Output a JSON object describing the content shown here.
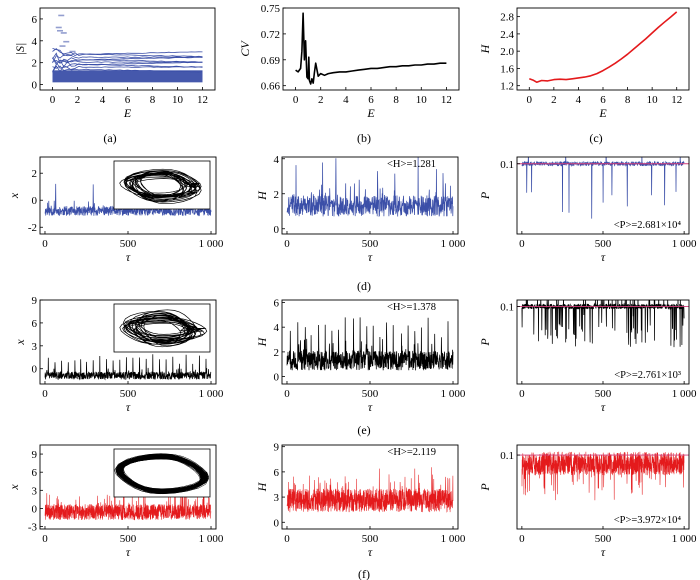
{
  "colors": {
    "blue": "#3b4fa8",
    "black": "#000000",
    "red": "#e41a1c",
    "pink": "#d23c78"
  },
  "row_labels": [
    "(a)",
    "(b)",
    "(c)",
    "(d)",
    "(e)",
    "(f)"
  ],
  "chart_data": [
    {
      "id": "a",
      "type": "line",
      "color": "blue",
      "xlabel": "E",
      "ylabel": "|S|",
      "xlim": [
        -1,
        13
      ],
      "ylim": [
        -0.5,
        7
      ],
      "xticks": [
        0,
        2,
        4,
        6,
        8,
        10,
        12
      ],
      "xtick_labels": [
        "0",
        "2",
        "4",
        "6",
        "8",
        "10",
        "12"
      ],
      "yticks": [
        0,
        2,
        4,
        6
      ],
      "ytick_labels": [
        "0",
        "2",
        "4",
        "6"
      ],
      "series_note": "many nearly flat lines",
      "x": [
        0,
        12
      ],
      "band": [
        0.2,
        1.3
      ],
      "lines": [
        1.45,
        1.6,
        1.75,
        1.9,
        2.05,
        2.2,
        2.35,
        2.5,
        2.7,
        2.85
      ],
      "scatter_points": [
        [
          0.6,
          4.9
        ],
        [
          0.9,
          4.7
        ],
        [
          0.7,
          6.3
        ],
        [
          0.5,
          5.2
        ],
        [
          0.8,
          3.5
        ],
        [
          1.1,
          3.9
        ],
        [
          1.6,
          3.0
        ]
      ]
    },
    {
      "id": "b",
      "type": "line",
      "color": "black",
      "xlabel": "E",
      "ylabel": "CV",
      "xlim": [
        -1,
        13
      ],
      "ylim": [
        0.655,
        0.75
      ],
      "xticks": [
        0,
        2,
        4,
        6,
        8,
        10,
        12
      ],
      "xtick_labels": [
        "0",
        "2",
        "4",
        "6",
        "8",
        "10",
        "12"
      ],
      "yticks": [
        0.66,
        0.69,
        0.72,
        0.75
      ],
      "ytick_labels": [
        "0.66",
        "0.69",
        "0.72",
        "0.75"
      ],
      "x": [
        0,
        0.2,
        0.4,
        0.5,
        0.6,
        0.7,
        0.75,
        0.8,
        0.9,
        1.0,
        1.05,
        1.1,
        1.2,
        1.3,
        1.4,
        1.5,
        1.6,
        1.8,
        2.0,
        2.3,
        2.6,
        3.0,
        3.5,
        4.0,
        4.5,
        5.0,
        5.5,
        6.0,
        6.5,
        7.0,
        7.5,
        8.0,
        8.5,
        9.0,
        9.5,
        10.0,
        10.5,
        11.0,
        11.5,
        12.0
      ],
      "y": [
        0.678,
        0.676,
        0.68,
        0.7,
        0.744,
        0.69,
        0.705,
        0.712,
        0.67,
        0.668,
        0.693,
        0.666,
        0.662,
        0.668,
        0.663,
        0.675,
        0.686,
        0.671,
        0.674,
        0.672,
        0.674,
        0.675,
        0.676,
        0.676,
        0.677,
        0.678,
        0.679,
        0.68,
        0.68,
        0.681,
        0.682,
        0.682,
        0.683,
        0.683,
        0.684,
        0.684,
        0.685,
        0.685,
        0.686,
        0.686
      ]
    },
    {
      "id": "c",
      "type": "line",
      "color": "red",
      "xlabel": "E",
      "ylabel": "H",
      "xlim": [
        -1,
        13
      ],
      "ylim": [
        1.1,
        3.0
      ],
      "xticks": [
        0,
        2,
        4,
        6,
        8,
        10,
        12
      ],
      "xtick_labels": [
        "0",
        "2",
        "4",
        "6",
        "8",
        "10",
        "12"
      ],
      "yticks": [
        1.2,
        1.6,
        2.0,
        2.4,
        2.8
      ],
      "ytick_labels": [
        "1.2",
        "1.6",
        "2.0",
        "2.4",
        "2.8"
      ],
      "x": [
        0,
        0.3,
        0.6,
        1.0,
        1.5,
        2.0,
        2.5,
        3.0,
        3.5,
        4.0,
        4.5,
        5.0,
        5.5,
        6.0,
        6.5,
        7.0,
        7.5,
        8.0,
        8.5,
        9.0,
        9.5,
        10.0,
        10.5,
        11.0,
        11.5,
        12.0
      ],
      "y": [
        1.36,
        1.33,
        1.28,
        1.32,
        1.31,
        1.34,
        1.35,
        1.34,
        1.36,
        1.38,
        1.4,
        1.43,
        1.48,
        1.55,
        1.63,
        1.72,
        1.82,
        1.93,
        2.05,
        2.17,
        2.29,
        2.42,
        2.55,
        2.67,
        2.79,
        2.91
      ]
    },
    {
      "id": "d1",
      "type": "line",
      "color": "blue",
      "xlabel": "τ",
      "ylabel": "x",
      "xlim": [
        -30,
        1030
      ],
      "ylim": [
        -2.5,
        3.2
      ],
      "xticks": [
        0,
        500,
        1000
      ],
      "xtick_labels": [
        "0",
        "500",
        "1 000"
      ],
      "yticks": [
        -2,
        0,
        2
      ],
      "ytick_labels": [
        "-2",
        "0",
        "2"
      ],
      "signal": {
        "n": 700,
        "base": -0.8,
        "noise": 0.35,
        "spikes": [
          65,
          290,
          420,
          480,
          555,
          640,
          820,
          890,
          950
        ],
        "spike_h": 2.0,
        "seed": 11
      },
      "inset": "attractor"
    },
    {
      "id": "d2",
      "type": "line",
      "color": "blue",
      "xlabel": "τ",
      "ylabel": "H",
      "xlim": [
        -30,
        1030
      ],
      "ylim": [
        -0.3,
        4.1
      ],
      "xticks": [
        0,
        500,
        1000
      ],
      "xtick_labels": [
        "0",
        "500",
        "1 000"
      ],
      "yticks": [
        0,
        2,
        4
      ],
      "ytick_labels": [
        "0",
        "2",
        "4"
      ],
      "annotation": "<H>=1.281",
      "signal": {
        "n": 700,
        "base": 1.3,
        "noise": 0.6,
        "spikes": [
          55,
          215,
          295,
          435,
          545,
          650,
          790,
          900,
          940
        ],
        "spike_h": 2.3,
        "seed": 21
      }
    },
    {
      "id": "d3",
      "type": "line",
      "color": "blue",
      "xlabel": "τ",
      "ylabel": "P",
      "xlim": [
        -30,
        1030
      ],
      "yscale": "log",
      "ylim_log": [
        -3.6,
        -0.75
      ],
      "xticks": [
        0,
        500,
        1000
      ],
      "xtick_labels": [
        "0",
        "500",
        "1 000"
      ],
      "yticks": [
        0.1
      ],
      "ytick_labels": [
        "0.1"
      ],
      "annotation": "<P>=2.681×10⁴",
      "reference_line": 0.1,
      "signal": {
        "n": 700,
        "base_log": -1.0,
        "noise": 0.08,
        "drops": [
          30,
          60,
          250,
          290,
          430,
          500,
          555,
          650,
          800,
          880,
          950
        ],
        "drop_depth": 1.9,
        "up_spikes": [
          40,
          270,
          520,
          740,
          975
        ],
        "seed": 31
      }
    },
    {
      "id": "e1",
      "type": "line",
      "color": "black",
      "xlabel": "τ",
      "ylabel": "x",
      "xlim": [
        -30,
        1030
      ],
      "ylim": [
        -2,
        9
      ],
      "xticks": [
        0,
        500,
        1000
      ],
      "xtick_labels": [
        "0",
        "500",
        "1 000"
      ],
      "yticks": [
        0,
        3,
        6,
        9
      ],
      "ytick_labels": [
        "0",
        "3",
        "6",
        "9"
      ],
      "signal": {
        "n": 800,
        "base": -0.9,
        "noise": 0.5,
        "spikes": [
          20,
          60,
          100,
          140,
          180,
          215,
          250,
          290,
          330,
          370,
          410,
          450,
          490,
          530,
          570,
          610,
          650,
          690,
          730,
          770,
          810,
          850,
          890,
          930,
          970
        ],
        "spike_h": 2.2,
        "seed": 41
      },
      "inset": "attractor"
    },
    {
      "id": "e2",
      "type": "line",
      "color": "black",
      "xlabel": "τ",
      "ylabel": "H",
      "xlim": [
        -30,
        1030
      ],
      "ylim": [
        -0.6,
        6.2
      ],
      "xticks": [
        0,
        500,
        1000
      ],
      "xtick_labels": [
        "0",
        "500",
        "1 000"
      ],
      "yticks": [
        0,
        2,
        4,
        6
      ],
      "ytick_labels": [
        "0",
        "2",
        "4",
        "6"
      ],
      "annotation": "<H>=1.378",
      "signal": {
        "n": 800,
        "base": 1.3,
        "noise": 0.8,
        "spikes": [
          20,
          65,
          110,
          145,
          190,
          230,
          270,
          310,
          350,
          400,
          440,
          480,
          520,
          560,
          600,
          640,
          690,
          730,
          770,
          810,
          850,
          890,
          930,
          970
        ],
        "spike_h": 2.6,
        "seed": 51
      }
    },
    {
      "id": "e3",
      "type": "line",
      "color": "black",
      "xlabel": "τ",
      "ylabel": "P",
      "xlim": [
        -30,
        1030
      ],
      "yscale": "log",
      "ylim_log": [
        -4.0,
        -0.75
      ],
      "xticks": [
        0,
        500,
        1000
      ],
      "xtick_labels": [
        "0",
        "500",
        "1 000"
      ],
      "yticks": [
        0.1
      ],
      "ytick_labels": [
        "0.1"
      ],
      "annotation": "<P>=2.761×10³",
      "reference_line": 0.1,
      "signal": {
        "n": 800,
        "base_log": -1.0,
        "noise": 0.1,
        "drop_rate": 0.09,
        "drop_depth": 1.4,
        "up_rate": 0.06,
        "seed": 61
      }
    },
    {
      "id": "f1",
      "type": "line",
      "color": "red",
      "xlabel": "τ",
      "ylabel": "x",
      "xlim": [
        -30,
        1030
      ],
      "ylim": [
        -3.4,
        10.5
      ],
      "xticks": [
        0,
        500,
        1000
      ],
      "xtick_labels": [
        "0",
        "500",
        "1 000"
      ],
      "yticks": [
        -3,
        0,
        3,
        6,
        9
      ],
      "ytick_labels": [
        "-3",
        "0",
        "3",
        "6",
        "9"
      ],
      "signal": {
        "n": 1200,
        "base": -0.6,
        "noise": 1.3,
        "spikes": [],
        "spike_h": 0,
        "seed": 71,
        "dense": true
      },
      "inset": "attractor"
    },
    {
      "id": "f2",
      "type": "line",
      "color": "red",
      "xlabel": "τ",
      "ylabel": "H",
      "xlim": [
        -30,
        1030
      ],
      "ylim": [
        -0.8,
        9.2
      ],
      "xticks": [
        0,
        500,
        1000
      ],
      "xtick_labels": [
        "0",
        "500",
        "1 000"
      ],
      "yticks": [
        0,
        3,
        6,
        9
      ],
      "ytick_labels": [
        "0",
        "3",
        "6",
        "9"
      ],
      "annotation": "<H>=2.119",
      "signal": {
        "n": 1200,
        "base": 2.6,
        "noise": 1.4,
        "spikes": [],
        "spike_h": 0,
        "seed": 81,
        "dense": true
      }
    },
    {
      "id": "f3",
      "type": "line",
      "color": "red",
      "xlabel": "τ",
      "ylabel": "P",
      "xlim": [
        -30,
        1030
      ],
      "yscale": "log",
      "ylim_log": [
        -3.2,
        -0.7
      ],
      "xticks": [
        0,
        500,
        1000
      ],
      "xtick_labels": [
        "0",
        "500",
        "1 000"
      ],
      "yticks": [
        0.1
      ],
      "ytick_labels": [
        "0.1"
      ],
      "annotation": "<P>=3.972×10⁴",
      "reference_line": 0.1,
      "signal": {
        "n": 1200,
        "base_log": -1.25,
        "noise": 0.35,
        "drop_rate": 0.05,
        "drop_depth": 0.8,
        "up_rate": 0,
        "seed": 91,
        "dense": true
      }
    }
  ]
}
